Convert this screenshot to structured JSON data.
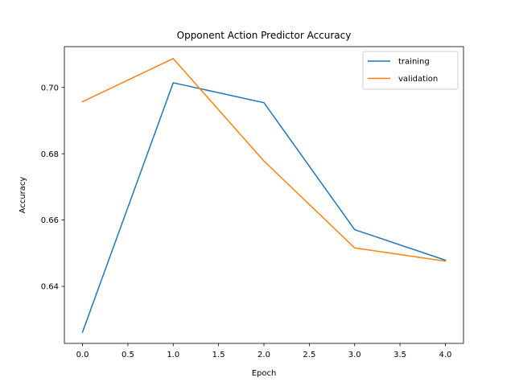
{
  "chart_data": {
    "type": "line",
    "title": "Opponent Action Predictor Accuracy",
    "xlabel": "Epoch",
    "ylabel": "Accuracy",
    "x": [
      0,
      1,
      2,
      3,
      4
    ],
    "xlim": [
      -0.2,
      4.2
    ],
    "ylim": [
      0.6228,
      0.7123
    ],
    "xticks": [
      0.0,
      0.5,
      1.0,
      1.5,
      2.0,
      2.5,
      3.0,
      3.5,
      4.0
    ],
    "xtick_labels": [
      "0.0",
      "0.5",
      "1.0",
      "1.5",
      "2.0",
      "2.5",
      "3.0",
      "3.5",
      "4.0"
    ],
    "yticks": [
      0.64,
      0.66,
      0.68,
      0.7
    ],
    "ytick_labels": [
      "0.64",
      "0.66",
      "0.68",
      "0.70"
    ],
    "grid": false,
    "legend_position": "top-right",
    "series": [
      {
        "name": "training",
        "color": "#1f77b4",
        "values": [
          0.6262,
          0.7014,
          0.6954,
          0.6571,
          0.6479
        ]
      },
      {
        "name": "validation",
        "color": "#ff7f0e",
        "values": [
          0.6957,
          0.7087,
          0.6778,
          0.6516,
          0.6476
        ]
      }
    ]
  }
}
